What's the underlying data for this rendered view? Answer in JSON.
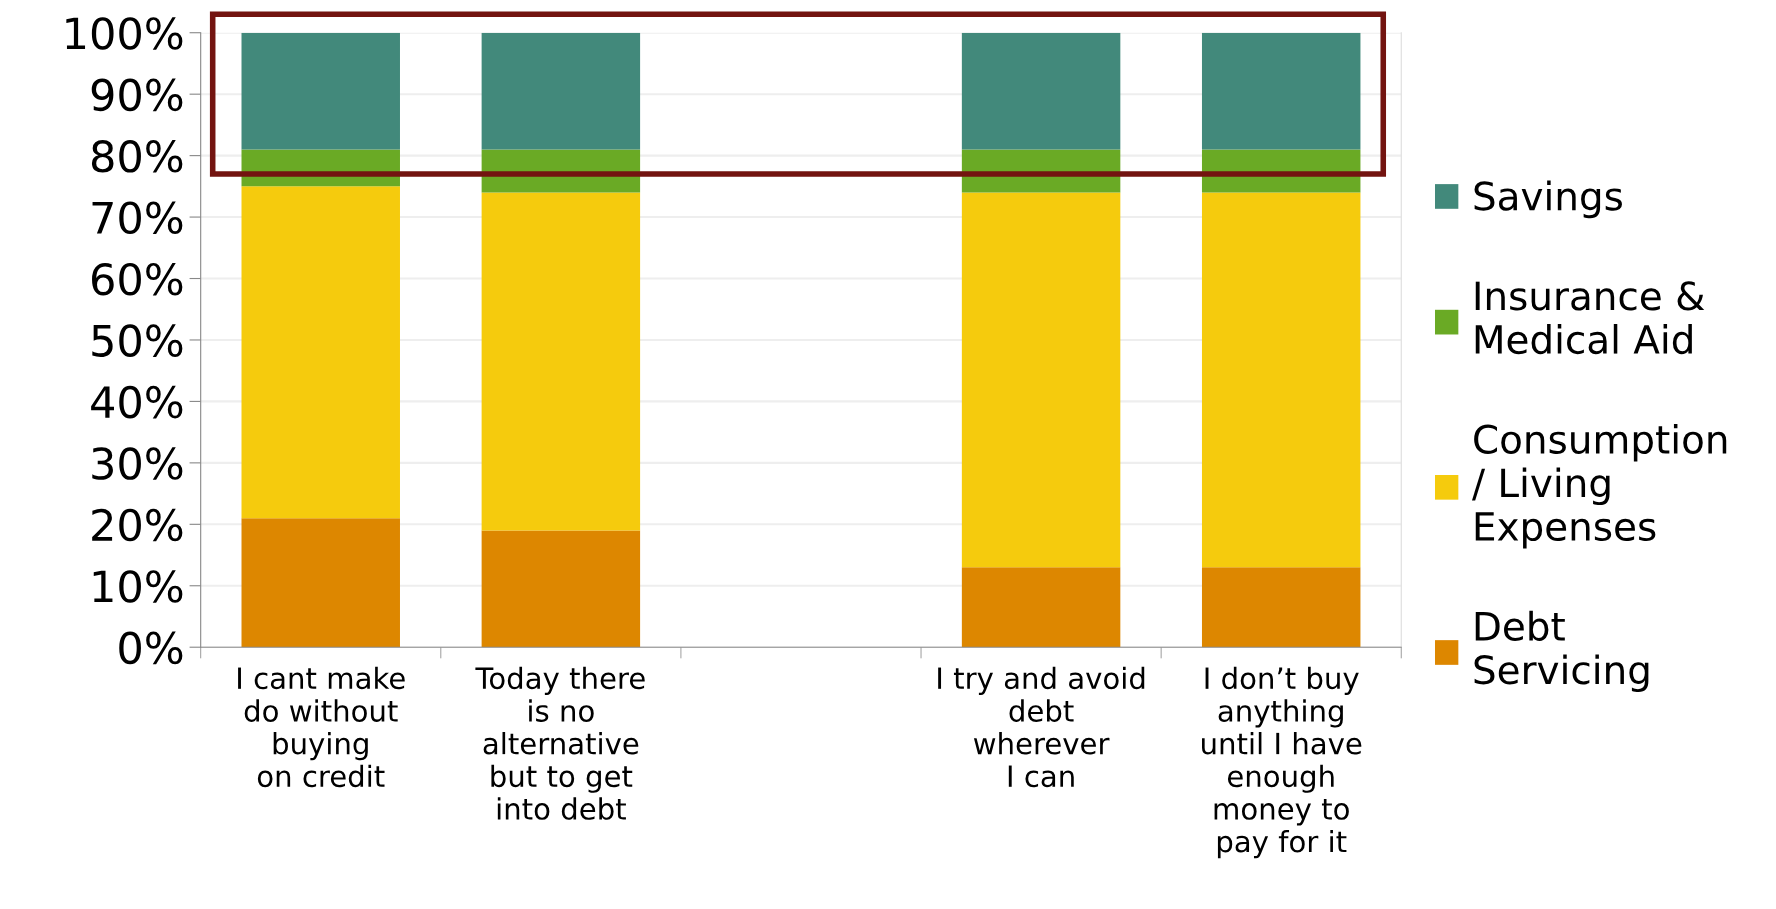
{
  "chart_data": {
    "type": "bar",
    "stacked": true,
    "categories": [
      "I cant make\ndo without\nbuying\non credit",
      "Today there\nis no\nalternative\nbut to get\ninto debt",
      null,
      "I try and avoid\ndebt\nwherever\nI can",
      "I don’t buy\nanything\nuntil I have\nenough\nmoney to\npay for it"
    ],
    "series": [
      {
        "name": "Debt\nServicing",
        "color": "#dd8700",
        "values": [
          21,
          19,
          null,
          13,
          13
        ]
      },
      {
        "name": "Consumption\n/ Living\nExpenses",
        "color": "#f5cb0d",
        "values": [
          54,
          55,
          null,
          61,
          61
        ]
      },
      {
        "name": "Insurance &\nMedical Aid",
        "color": "#6aaa25",
        "values": [
          6,
          7,
          null,
          7,
          7
        ]
      },
      {
        "name": "Savings",
        "color": "#42897b",
        "values": [
          19,
          19,
          null,
          19,
          19
        ]
      }
    ],
    "ylim": [
      0,
      100
    ],
    "yticks": [
      {
        "value": 0,
        "label": "0%"
      },
      {
        "value": 10,
        "label": "10%"
      },
      {
        "value": 20,
        "label": "20%"
      },
      {
        "value": 30,
        "label": "30%"
      },
      {
        "value": 40,
        "label": "40%"
      },
      {
        "value": 50,
        "label": "50%"
      },
      {
        "value": 60,
        "label": "60%"
      },
      {
        "value": 70,
        "label": "70%"
      },
      {
        "value": 80,
        "label": "80%"
      },
      {
        "value": 90,
        "label": "90%"
      },
      {
        "value": 100,
        "label": "100%"
      }
    ],
    "grid": "y",
    "legend": "right"
  }
}
